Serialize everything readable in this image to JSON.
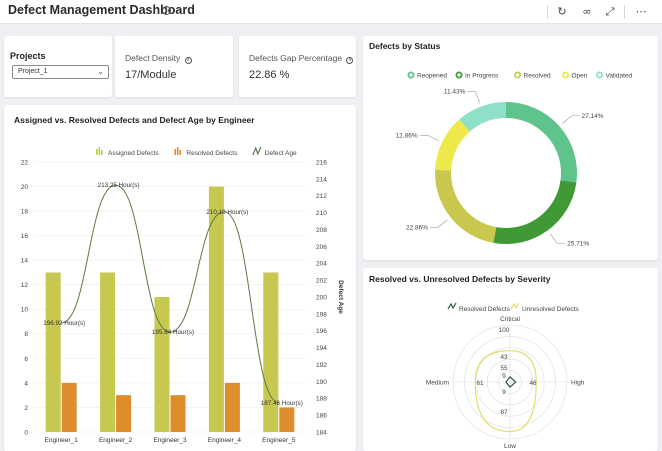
{
  "header": {
    "title": "Defect Management Dashboard",
    "info_icon": "info-icon",
    "actions": [
      "refresh-icon",
      "link-icon",
      "expand-icon",
      "more-icon"
    ]
  },
  "projects": {
    "title": "Projects",
    "selected": "Project_1"
  },
  "kpis": {
    "density": {
      "label": "Defect Density",
      "value": "17/Module"
    },
    "gap": {
      "label": "Defects Gap Percentage",
      "value": "22.86 %"
    }
  },
  "colors": {
    "assigned": "#c6c84f",
    "resolved": "#de8c2c",
    "age_line": "#5a7a46",
    "reopened": "#5fc48c",
    "in_progress": "#3f9a36",
    "resolved_status": "#c8c84f",
    "open": "#ede94a",
    "validated": "#8fe0c9",
    "resolved_defects": "#2e5a3a",
    "unresolved_defects": "#e3dd6b"
  },
  "chart_data": [
    {
      "type": "bar",
      "title": "Assigned vs. Resolved Defects and Defect Age by Engineer",
      "categories": [
        "Engineer_1",
        "Engineer_2",
        "Engineer_3",
        "Engineer_4",
        "Engineer_5"
      ],
      "series": [
        {
          "name": "Assigned Defects",
          "values": [
            13,
            13,
            11,
            20,
            13
          ]
        },
        {
          "name": "Resolved Defects",
          "values": [
            4,
            3,
            3,
            4,
            2
          ]
        },
        {
          "name": "Defect Age",
          "type": "line",
          "values": [
            196.92,
            213.25,
            195.84,
            210.1,
            187.46
          ],
          "labels": [
            "196.92 Hour(s)",
            "213.25 Hour(s)",
            "195.84 Hour(s)",
            "210.10 Hour(s)",
            "187.46 Hour(s)"
          ]
        }
      ],
      "ylim": [
        0,
        22
      ],
      "yticks": [
        "0",
        "2",
        "4",
        "6",
        "8",
        "10",
        "12",
        "14",
        "16",
        "18",
        "20",
        "22"
      ],
      "y2lim": [
        184,
        216
      ],
      "y2ticks": [
        "184",
        "186",
        "188",
        "190",
        "192",
        "194",
        "196",
        "198",
        "200",
        "202",
        "204",
        "206",
        "208",
        "210",
        "212",
        "214",
        "216"
      ],
      "y2label": "Defect Age",
      "legend": "top"
    },
    {
      "type": "pie",
      "title": "Defects by Status",
      "categories": [
        "Reopened",
        "In Progress",
        "Resolved",
        "Open",
        "Validated"
      ],
      "values": [
        27.14,
        25.71,
        22.86,
        12.86,
        11.43
      ],
      "labels": [
        "27.14%",
        "25.71%",
        "22.86%",
        "12.86%",
        "11.43%"
      ],
      "donut": true,
      "legend": "top"
    },
    {
      "type": "radar",
      "title": "Resolved vs. Unresolved Defects by Severity",
      "categories": [
        "Critical",
        "High",
        "Low",
        "Medium"
      ],
      "series": [
        {
          "name": "Resolved Defects",
          "values": [
            9,
            10,
            9,
            7
          ]
        },
        {
          "name": "Unresolved Defects",
          "values": [
            55,
            46,
            87,
            61
          ]
        }
      ],
      "rings": [
        "0",
        "20",
        "40",
        "60",
        "80",
        "100"
      ],
      "ring_labels": [
        "100",
        "43",
        "55",
        "9",
        "9",
        "87",
        "46",
        "61"
      ],
      "legend": "top"
    }
  ]
}
